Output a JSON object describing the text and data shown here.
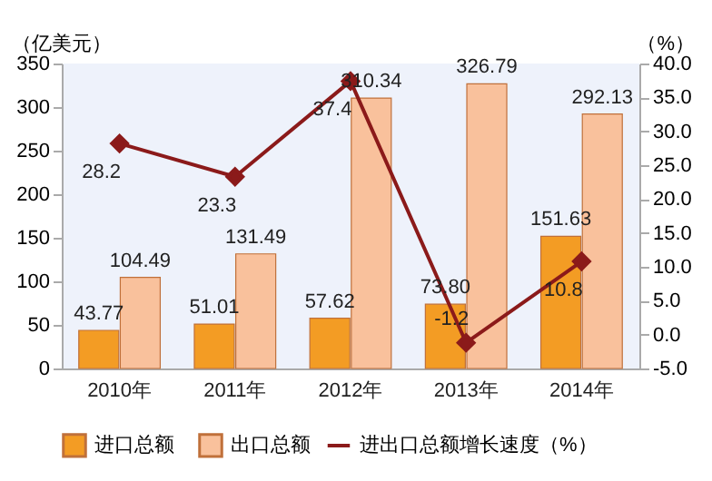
{
  "chart_data": {
    "type": "bar",
    "ylabel": "（亿美元）",
    "y2label": "（%）",
    "categories": [
      "2010年",
      "2011年",
      "2012年",
      "2013年",
      "2014年"
    ],
    "series": [
      {
        "name": "进口总额",
        "color": "#f39c24",
        "values": [
          43.77,
          51.01,
          57.62,
          73.8,
          151.63
        ],
        "value_labels": [
          "43.77",
          "51.01",
          "57.62",
          "73.80",
          "151.63"
        ]
      },
      {
        "name": "出口总额",
        "color": "#f9c19c",
        "values": [
          104.49,
          131.49,
          310.34,
          326.79,
          292.13
        ],
        "value_labels": [
          "104.49",
          "131.49",
          "310.34",
          "326.79",
          "292.13"
        ]
      },
      {
        "name": "进出口总额增长速度（%）",
        "type": "line",
        "axis": "y2",
        "color": "#8b1a1a",
        "marker": "diamond",
        "values": [
          28.2,
          23.3,
          37.4,
          -1.2,
          10.8
        ],
        "value_labels": [
          "28.2",
          "23.3",
          "37.4",
          "-1.2",
          "10.8"
        ]
      }
    ],
    "ylim": [
      0,
      350
    ],
    "yticks": [
      0,
      50,
      100,
      150,
      200,
      250,
      300,
      350
    ],
    "y2lim": [
      -5,
      40
    ],
    "y2ticks": [
      {
        "value": -5,
        "label": "-5.0"
      },
      {
        "value": 0,
        "label": "0.0"
      },
      {
        "value": 5,
        "label": "5.0"
      },
      {
        "value": 10,
        "label": "10.0"
      },
      {
        "value": 15,
        "label": "15.0"
      },
      {
        "value": 20,
        "label": "20.0"
      },
      {
        "value": 25,
        "label": "25.0"
      },
      {
        "value": 30,
        "label": "30.0"
      },
      {
        "value": 35,
        "label": "35.0"
      },
      {
        "value": 40,
        "label": "40.0"
      }
    ],
    "grid": false,
    "legend": "bottom"
  }
}
